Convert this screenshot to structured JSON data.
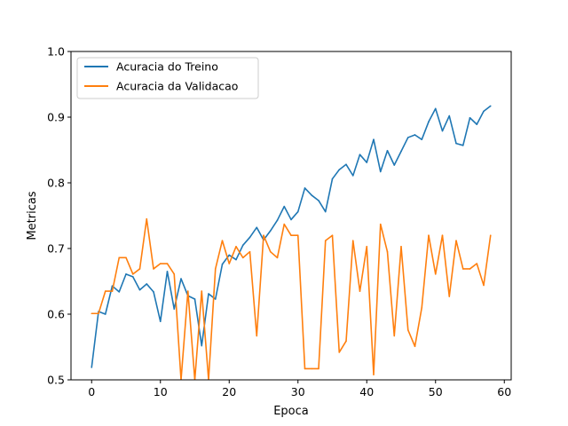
{
  "chart_data": {
    "type": "line",
    "title": "",
    "xlabel": "Epoca",
    "ylabel": "Metricas",
    "xlim": [
      -3,
      61
    ],
    "ylim": [
      0.5,
      1.0
    ],
    "xticks": [
      0,
      10,
      20,
      30,
      40,
      50,
      60
    ],
    "yticks": [
      0.5,
      0.6,
      0.7,
      0.8,
      0.9,
      1.0
    ],
    "xtick_labels": [
      "0",
      "10",
      "20",
      "30",
      "40",
      "50",
      "60"
    ],
    "ytick_labels": [
      "0.5",
      "0.6",
      "0.7",
      "0.8",
      "0.9",
      "1.0"
    ],
    "grid": false,
    "legend_position": "top-left",
    "x": [
      0,
      1,
      2,
      3,
      4,
      5,
      6,
      7,
      8,
      9,
      10,
      11,
      12,
      13,
      14,
      15,
      16,
      17,
      18,
      19,
      20,
      21,
      22,
      23,
      24,
      25,
      26,
      27,
      28,
      29,
      30,
      31,
      32,
      33,
      34,
      35,
      36,
      37,
      38,
      39,
      40,
      41,
      42,
      43,
      44,
      45,
      46,
      47,
      48,
      49,
      50,
      51,
      52,
      53,
      54,
      55,
      56,
      57,
      58
    ],
    "series": [
      {
        "name": "Acuracia do Treino",
        "color": "#1f77b4",
        "values": [
          0.519,
          0.604,
          0.6,
          0.643,
          0.634,
          0.661,
          0.657,
          0.637,
          0.646,
          0.634,
          0.589,
          0.665,
          0.608,
          0.654,
          0.628,
          0.623,
          0.552,
          0.631,
          0.623,
          0.676,
          0.69,
          0.683,
          0.705,
          0.717,
          0.732,
          0.713,
          0.727,
          0.743,
          0.764,
          0.744,
          0.756,
          0.792,
          0.781,
          0.773,
          0.756,
          0.806,
          0.82,
          0.828,
          0.811,
          0.843,
          0.831,
          0.866,
          0.817,
          0.849,
          0.827,
          0.848,
          0.869,
          0.873,
          0.866,
          0.893,
          0.913,
          0.879,
          0.902,
          0.86,
          0.857,
          0.899,
          0.889,
          0.909,
          0.917
        ]
      },
      {
        "name": "Acuracia da Validacao",
        "color": "#ff7f0e",
        "values": [
          0.601,
          0.601,
          0.635,
          0.635,
          0.686,
          0.686,
          0.661,
          0.669,
          0.745,
          0.669,
          0.677,
          0.677,
          0.661,
          0.5,
          0.635,
          0.5,
          0.635,
          0.5,
          0.669,
          0.712,
          0.677,
          0.703,
          0.686,
          0.695,
          0.567,
          0.72,
          0.695,
          0.686,
          0.737,
          0.72,
          0.72,
          0.517,
          0.517,
          0.517,
          0.712,
          0.72,
          0.542,
          0.559,
          0.712,
          0.635,
          0.703,
          0.508,
          0.737,
          0.695,
          0.567,
          0.703,
          0.576,
          0.551,
          0.61,
          0.72,
          0.661,
          0.72,
          0.627,
          0.712,
          0.669,
          0.669,
          0.677,
          0.644,
          0.72
        ]
      }
    ]
  }
}
